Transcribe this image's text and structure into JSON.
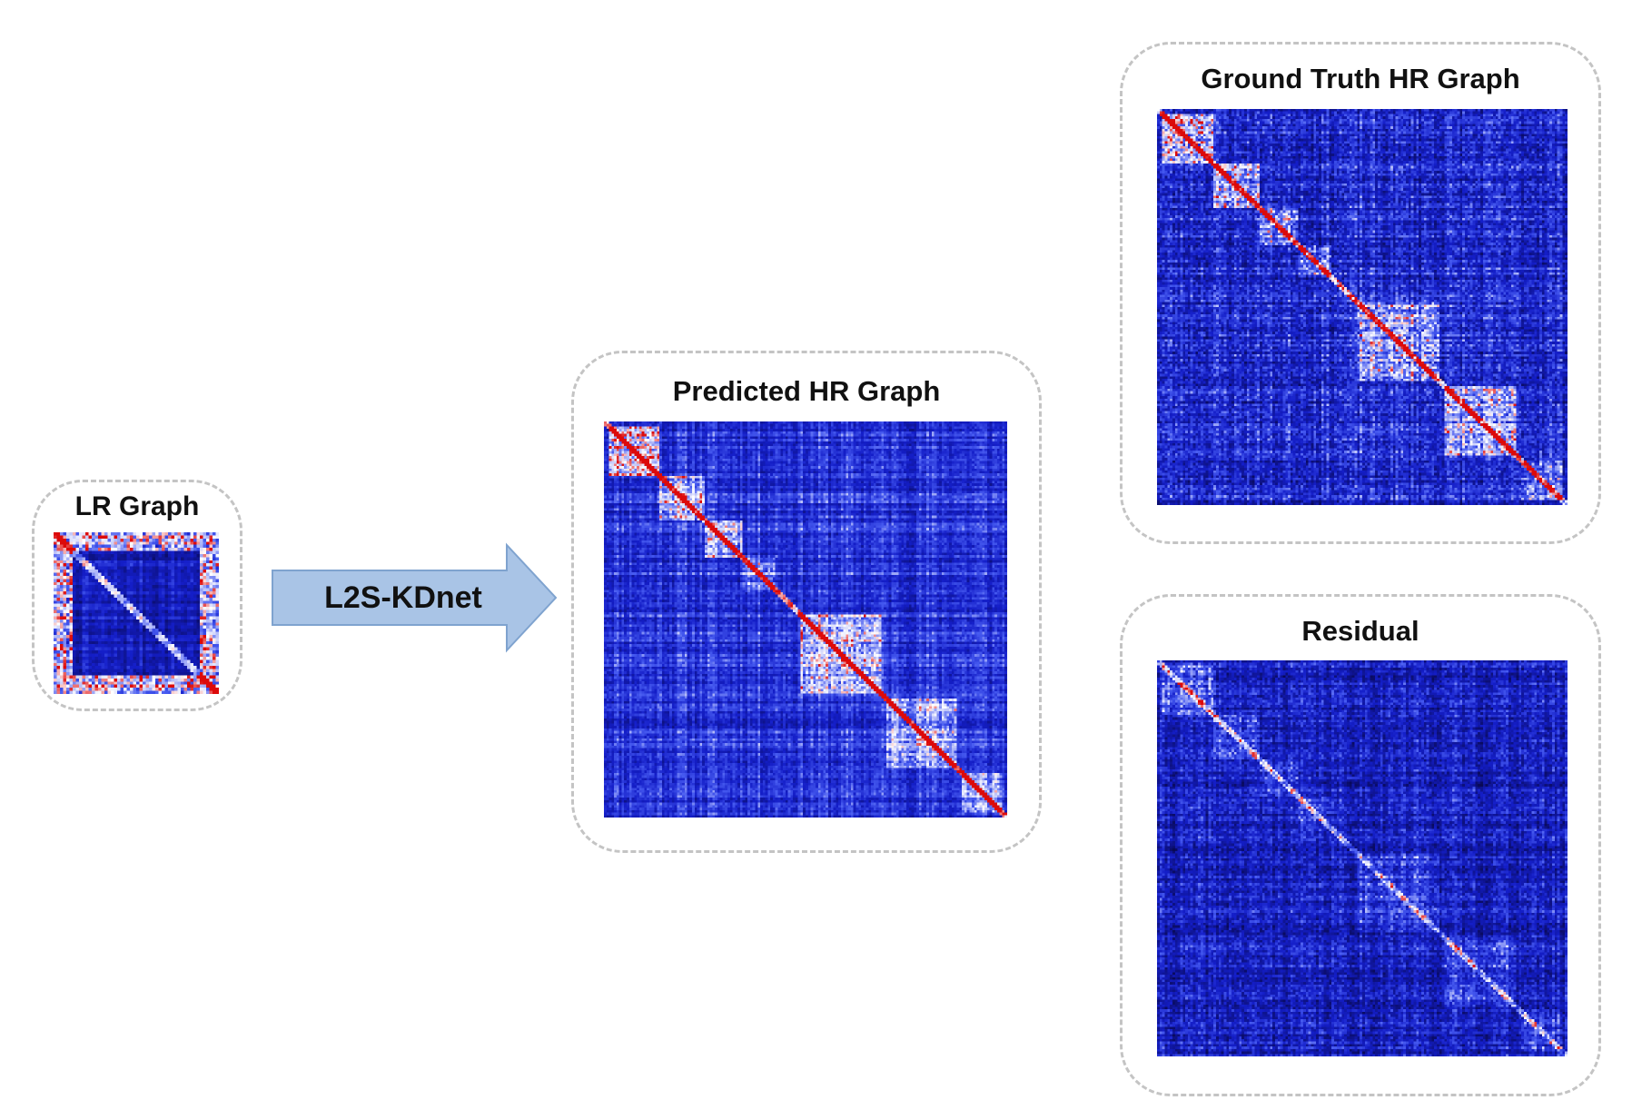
{
  "panels": {
    "lr": {
      "title": "LR Graph"
    },
    "predicted": {
      "title": "Predicted HR Graph"
    },
    "ground_truth": {
      "title": "Ground Truth HR Graph"
    },
    "residual": {
      "title": "Residual"
    }
  },
  "arrow": {
    "label": "L2S-KDnet"
  },
  "colors": {
    "arrow_fill": "#a9c4e6",
    "arrow_stroke": "#7fa3cf",
    "matrix_low": "#0a0a6e",
    "matrix_mid": "#1f2fd6",
    "matrix_high": "#e01010"
  }
}
